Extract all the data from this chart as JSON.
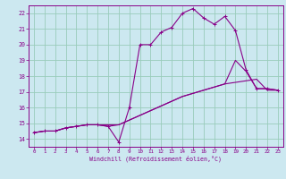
{
  "xlabel": "Windchill (Refroidissement éolien,°C)",
  "bg_color": "#cce8f0",
  "line_color": "#880088",
  "grid_color": "#99ccbb",
  "xlim": [
    -0.5,
    23.5
  ],
  "ylim": [
    13.5,
    22.5
  ],
  "xticks": [
    0,
    1,
    2,
    3,
    4,
    5,
    6,
    7,
    8,
    9,
    10,
    11,
    12,
    13,
    14,
    15,
    16,
    17,
    18,
    19,
    20,
    21,
    22,
    23
  ],
  "yticks": [
    14,
    15,
    16,
    17,
    18,
    19,
    20,
    21,
    22
  ],
  "line1_x": [
    0,
    1,
    2,
    3,
    4,
    5,
    6,
    7,
    8,
    9,
    10,
    11,
    12,
    13,
    14,
    15,
    16,
    17,
    18,
    19,
    20,
    21,
    22,
    23
  ],
  "line1_y": [
    14.4,
    14.5,
    14.5,
    14.7,
    14.8,
    14.9,
    14.9,
    14.8,
    13.8,
    16.0,
    20.0,
    20.0,
    20.8,
    21.1,
    22.0,
    22.3,
    21.7,
    21.3,
    21.8,
    20.9,
    18.4,
    17.2,
    17.2,
    17.1
  ],
  "line2_x": [
    0,
    1,
    2,
    3,
    4,
    5,
    6,
    7,
    8,
    9,
    10,
    11,
    12,
    13,
    14,
    15,
    16,
    17,
    18,
    19,
    20,
    21,
    22,
    23
  ],
  "line2_y": [
    14.4,
    14.5,
    14.5,
    14.7,
    14.8,
    14.9,
    14.9,
    14.9,
    14.9,
    15.2,
    15.5,
    15.8,
    16.1,
    16.4,
    16.7,
    16.9,
    17.1,
    17.3,
    17.5,
    17.6,
    17.7,
    17.8,
    17.1,
    17.1
  ],
  "line3_x": [
    0,
    1,
    2,
    3,
    4,
    5,
    6,
    7,
    8,
    9,
    10,
    11,
    12,
    13,
    14,
    15,
    16,
    17,
    18,
    19,
    20,
    21,
    22,
    23
  ],
  "line3_y": [
    14.4,
    14.5,
    14.5,
    14.7,
    14.8,
    14.9,
    14.9,
    14.8,
    14.9,
    15.2,
    15.5,
    15.8,
    16.1,
    16.4,
    16.7,
    16.9,
    17.1,
    17.3,
    17.5,
    19.0,
    18.3,
    17.2,
    17.2,
    17.1
  ],
  "marker1_x": [
    0,
    1,
    2,
    3,
    4,
    5,
    6,
    7,
    8,
    9,
    10,
    11,
    12,
    13,
    14,
    15,
    16,
    17,
    18,
    19,
    20,
    21,
    22,
    23
  ],
  "marker1_y": [
    14.4,
    14.5,
    14.5,
    14.7,
    14.8,
    14.9,
    14.9,
    14.8,
    13.8,
    16.0,
    20.0,
    20.0,
    20.8,
    21.1,
    22.0,
    22.3,
    21.7,
    21.3,
    21.8,
    20.9,
    18.4,
    17.2,
    17.2,
    17.1
  ]
}
